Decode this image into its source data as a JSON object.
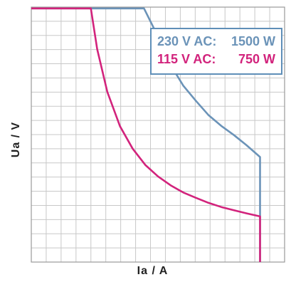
{
  "chart_data": {
    "type": "line",
    "title": "",
    "xlabel": "Ia / A",
    "ylabel": "Ua / V",
    "grid": true,
    "xlim": [
      0,
      10
    ],
    "ylim": [
      0,
      10
    ],
    "legend_position": "top-right",
    "series": [
      {
        "name": "230 V AC: 1500 W",
        "label": "230 V AC:",
        "power": "1500 W",
        "color": "#6b93b8",
        "points": [
          [
            0,
            9.95
          ],
          [
            4.45,
            9.95
          ],
          [
            5.0,
            8.85
          ],
          [
            5.5,
            7.73
          ],
          [
            6.0,
            6.92
          ],
          [
            6.5,
            6.32
          ],
          [
            7.0,
            5.76
          ],
          [
            7.5,
            5.34
          ],
          [
            8.0,
            4.98
          ],
          [
            8.5,
            4.58
          ],
          [
            9.03,
            4.12
          ],
          [
            9.03,
            0.0
          ]
        ]
      },
      {
        "name": "115 V AC: 750 W",
        "label": "115 V AC:",
        "power": "750 W",
        "color": "#d2237c",
        "points": [
          [
            0,
            9.95
          ],
          [
            2.35,
            9.95
          ],
          [
            2.6,
            8.35
          ],
          [
            3.0,
            6.68
          ],
          [
            3.5,
            5.33
          ],
          [
            4.0,
            4.45
          ],
          [
            4.5,
            3.81
          ],
          [
            5.0,
            3.36
          ],
          [
            5.5,
            3.01
          ],
          [
            6.0,
            2.73
          ],
          [
            6.5,
            2.52
          ],
          [
            7.0,
            2.32
          ],
          [
            7.5,
            2.16
          ],
          [
            8.0,
            2.03
          ],
          [
            8.5,
            1.91
          ],
          [
            9.03,
            1.79
          ],
          [
            9.03,
            0.0
          ]
        ]
      }
    ]
  },
  "colors": {
    "grid": "#c8c8c8",
    "frame": "#9a9a9a",
    "legend_border": "#5f8fb8"
  }
}
